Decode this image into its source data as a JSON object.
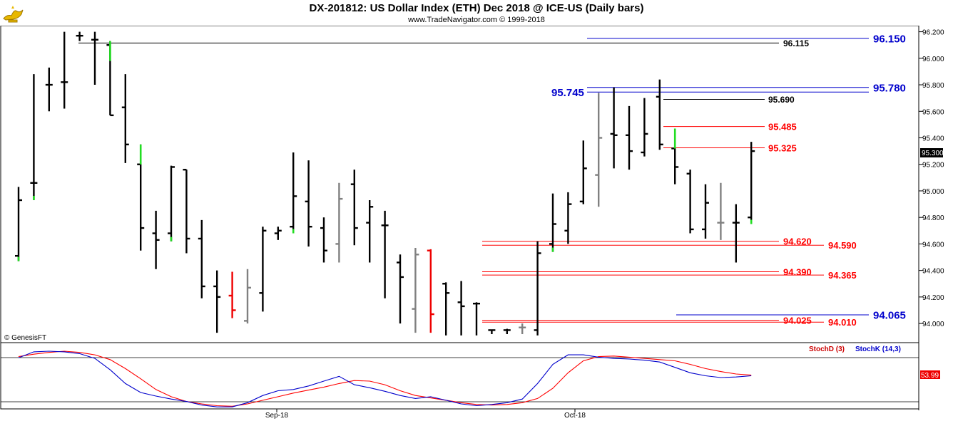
{
  "header": {
    "title": "DX-201812:  US Dollar Index (ETH) Dec 2018 @ ICE-US  (Daily bars)",
    "subtitle": "www.TradeNavigator.com © 1999-2018",
    "logo_icon": "genie-lamp-logo"
  },
  "watermark": "© GenesisFT",
  "last_price": "95.300",
  "chart_data": [
    {
      "type": "ohlc",
      "ylim": [
        93.92,
        96.23
      ],
      "yticks": [
        "96.200",
        "96.000",
        "95.800",
        "95.600",
        "95.400",
        "95.200",
        "95.000",
        "94.800",
        "94.600",
        "94.400",
        "94.200",
        "94.000"
      ],
      "xticks": [
        "Sep-18",
        "Oct-18"
      ],
      "colors": {
        "up": "#000000",
        "down": "#000000",
        "neutral": "#808080",
        "red": "#ff0000",
        "green": "#00dd00"
      },
      "bars": [
        {
          "o": 94.51,
          "h": 95.03,
          "l": 94.47,
          "c": 94.93,
          "color": "black",
          "mark": "green-low"
        },
        {
          "o": 95.06,
          "h": 95.88,
          "l": 94.93,
          "c": 95.06,
          "color": "black",
          "mark": "green-low"
        },
        {
          "o": 95.8,
          "h": 95.93,
          "l": 95.6,
          "c": 95.8,
          "color": "black"
        },
        {
          "o": 95.82,
          "h": 96.2,
          "l": 95.62,
          "c": 95.82,
          "color": "black"
        },
        {
          "o": 96.17,
          "h": 96.2,
          "l": 96.13,
          "c": 96.17,
          "color": "black"
        },
        {
          "o": 96.14,
          "h": 96.2,
          "l": 95.8,
          "c": 96.14,
          "color": "black"
        },
        {
          "o": 96.1,
          "h": 96.13,
          "l": 95.57,
          "c": 95.57,
          "color": "black",
          "mark": "green-high"
        },
        {
          "o": 95.63,
          "h": 95.88,
          "l": 95.21,
          "c": 95.35,
          "color": "black"
        },
        {
          "o": 95.2,
          "h": 95.35,
          "l": 94.55,
          "c": 94.72,
          "color": "black",
          "mark": "green-high"
        },
        {
          "o": 94.68,
          "h": 94.85,
          "l": 94.41,
          "c": 94.63,
          "color": "black"
        },
        {
          "o": 94.68,
          "h": 95.19,
          "l": 94.62,
          "c": 95.18,
          "color": "black",
          "mark": "green-low"
        },
        {
          "o": 95.16,
          "h": 95.16,
          "l": 94.53,
          "c": 94.64,
          "color": "black"
        },
        {
          "o": 94.64,
          "h": 94.78,
          "l": 94.19,
          "c": 94.28,
          "color": "black"
        },
        {
          "o": 94.28,
          "h": 94.4,
          "l": 93.93,
          "c": 94.2,
          "color": "black"
        },
        {
          "o": 94.21,
          "h": 94.39,
          "l": 94.04,
          "c": 94.1,
          "color": "red"
        },
        {
          "o": 94.02,
          "h": 94.41,
          "l": 94.0,
          "c": 94.27,
          "color": "gray"
        },
        {
          "o": 94.23,
          "h": 94.73,
          "l": 94.09,
          "c": 94.7,
          "color": "black"
        },
        {
          "o": 94.68,
          "h": 94.73,
          "l": 94.63,
          "c": 94.7,
          "color": "black"
        },
        {
          "o": 94.73,
          "h": 95.29,
          "l": 94.68,
          "c": 94.96,
          "color": "black",
          "mark": "green-low"
        },
        {
          "o": 94.92,
          "h": 95.23,
          "l": 94.58,
          "c": 94.73,
          "color": "black"
        },
        {
          "o": 94.72,
          "h": 94.8,
          "l": 94.46,
          "c": 94.55,
          "color": "black"
        },
        {
          "o": 94.6,
          "h": 95.06,
          "l": 94.46,
          "c": 94.94,
          "color": "gray"
        },
        {
          "o": 95.05,
          "h": 95.16,
          "l": 94.59,
          "c": 94.72,
          "color": "black"
        },
        {
          "o": 94.76,
          "h": 94.93,
          "l": 94.46,
          "c": 94.88,
          "color": "black"
        },
        {
          "o": 94.74,
          "h": 94.85,
          "l": 94.19,
          "c": 94.74,
          "color": "black"
        },
        {
          "o": 94.46,
          "h": 94.52,
          "l": 94.0,
          "c": 94.35,
          "color": "black"
        },
        {
          "o": 94.11,
          "h": 94.57,
          "l": 93.93,
          "c": 94.52,
          "color": "gray"
        },
        {
          "o": 94.55,
          "h": 94.56,
          "l": 93.93,
          "c": 94.07,
          "color": "red"
        },
        {
          "o": 94.3,
          "h": 94.31,
          "l": 93.91,
          "c": 94.23,
          "color": "black"
        },
        {
          "o": 94.16,
          "h": 94.32,
          "l": 93.91,
          "c": 94.13,
          "color": "black"
        },
        {
          "o": 94.15,
          "h": 94.16,
          "l": 93.91,
          "c": 94.15,
          "color": "black"
        },
        {
          "o": 93.95,
          "h": 93.95,
          "l": 93.92,
          "c": 93.95,
          "color": "black"
        },
        {
          "o": 93.95,
          "h": 93.96,
          "l": 93.92,
          "c": 93.95,
          "color": "black"
        },
        {
          "o": 93.97,
          "h": 94.0,
          "l": 93.92,
          "c": 93.97,
          "color": "gray"
        },
        {
          "o": 93.95,
          "h": 94.62,
          "l": 93.91,
          "c": 94.53,
          "color": "black"
        },
        {
          "o": 94.6,
          "h": 94.98,
          "l": 94.54,
          "c": 94.75,
          "color": "black",
          "mark": "green-low"
        },
        {
          "o": 94.7,
          "h": 94.99,
          "l": 94.6,
          "c": 94.9,
          "color": "black"
        },
        {
          "o": 94.92,
          "h": 95.38,
          "l": 94.9,
          "c": 95.17,
          "color": "black"
        },
        {
          "o": 95.12,
          "h": 95.74,
          "l": 94.88,
          "c": 95.4,
          "color": "gray"
        },
        {
          "o": 95.43,
          "h": 95.78,
          "l": 95.17,
          "c": 95.42,
          "color": "black"
        },
        {
          "o": 95.42,
          "h": 95.64,
          "l": 95.16,
          "c": 95.3,
          "color": "black"
        },
        {
          "o": 95.29,
          "h": 95.7,
          "l": 95.26,
          "c": 95.43,
          "color": "black"
        },
        {
          "o": 95.71,
          "h": 95.84,
          "l": 95.31,
          "c": 95.35,
          "color": "black"
        },
        {
          "o": 95.32,
          "h": 95.47,
          "l": 95.05,
          "c": 95.18,
          "color": "black",
          "mark": "green-high"
        },
        {
          "o": 95.13,
          "h": 95.16,
          "l": 94.68,
          "c": 94.71,
          "color": "black"
        },
        {
          "o": 94.71,
          "h": 95.05,
          "l": 94.64,
          "c": 94.91,
          "color": "black"
        },
        {
          "o": 94.76,
          "h": 95.06,
          "l": 94.63,
          "c": 94.76,
          "color": "gray"
        },
        {
          "o": 94.76,
          "h": 94.9,
          "l": 94.46,
          "c": 94.76,
          "color": "black"
        },
        {
          "o": 94.8,
          "h": 95.37,
          "l": 94.75,
          "c": 95.3,
          "color": "black",
          "mark": "green-low"
        }
      ],
      "levels": [
        {
          "value": 96.15,
          "label": "96.150",
          "color": "#0000cc",
          "side": "right"
        },
        {
          "value": 96.115,
          "label": "96.115",
          "color": "#000000",
          "side": "mid"
        },
        {
          "value": 95.78,
          "label": "95.780",
          "color": "#0000cc",
          "side": "right"
        },
        {
          "value": 95.745,
          "label": "95.745",
          "color": "#0000cc",
          "side": "left"
        },
        {
          "value": 95.69,
          "label": "95.690",
          "color": "#000000",
          "side": "mid"
        },
        {
          "value": 95.485,
          "label": "95.485",
          "color": "#ff0000",
          "side": "mid"
        },
        {
          "value": 95.325,
          "label": "95.325",
          "color": "#ff0000",
          "side": "mid"
        },
        {
          "value": 94.62,
          "label": "94.620",
          "color": "#ff0000",
          "side": "mid"
        },
        {
          "value": 94.59,
          "label": "94.590",
          "color": "#ff0000",
          "side": "right"
        },
        {
          "value": 94.39,
          "label": "94.390",
          "color": "#ff0000",
          "side": "mid"
        },
        {
          "value": 94.365,
          "label": "94.365",
          "color": "#ff0000",
          "side": "right"
        },
        {
          "value": 94.065,
          "label": "94.065",
          "color": "#0000cc",
          "side": "right"
        },
        {
          "value": 94.025,
          "label": "94.025",
          "color": "#ff0000",
          "side": "mid"
        },
        {
          "value": 94.01,
          "label": "94.010",
          "color": "#ff0000",
          "side": "right"
        }
      ]
    },
    {
      "type": "line",
      "title": "StochD (3)  StochK (14,3)",
      "ylim": [
        0,
        100
      ],
      "last_value_label": "53.99",
      "series": [
        {
          "name": "StochD (3)",
          "color": "#ff0000",
          "values": [
            85,
            89,
            92,
            94,
            92,
            88,
            80,
            65,
            48,
            30,
            18,
            10,
            6,
            3,
            2,
            6,
            12,
            18,
            24,
            29,
            34,
            40,
            45,
            44,
            38,
            28,
            20,
            16,
            12,
            8,
            5,
            4,
            5,
            8,
            15,
            32,
            58,
            78,
            85,
            86,
            84,
            82,
            80,
            78,
            72,
            65,
            60,
            56,
            54
          ]
        },
        {
          "name": "StochK (14,3)",
          "color": "#0000cc",
          "values": [
            83,
            93,
            94,
            93,
            90,
            82,
            63,
            40,
            25,
            19,
            14,
            10,
            4,
            1,
            1,
            8,
            20,
            28,
            30,
            36,
            44,
            52,
            38,
            33,
            27,
            20,
            15,
            18,
            12,
            6,
            3,
            5,
            8,
            14,
            40,
            72,
            88,
            88,
            84,
            82,
            81,
            79,
            76,
            67,
            58,
            53,
            50,
            51,
            53
          ]
        }
      ],
      "xticks": [
        "Sep-18",
        "Oct-18"
      ]
    }
  ],
  "legend": {
    "stochd": "StochD (3)",
    "stochk": "StochK (14,3)"
  }
}
